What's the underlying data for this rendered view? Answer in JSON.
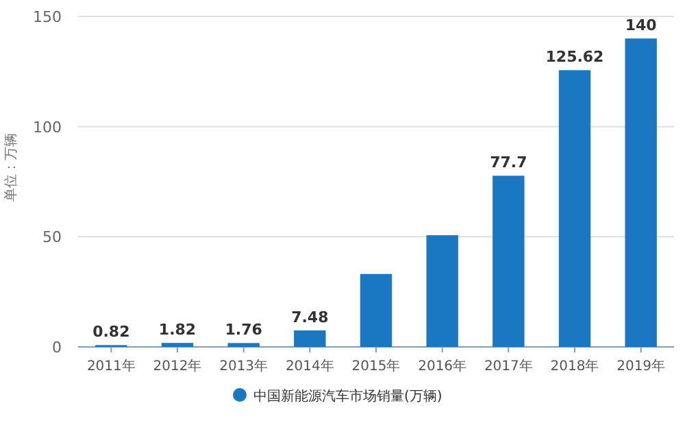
{
  "chart_data": {
    "type": "bar",
    "ylabel": "单位：万辆",
    "categories": [
      "2011年",
      "2012年",
      "2013年",
      "2014年",
      "2015年",
      "2016年",
      "2017年",
      "2018年",
      "2019年"
    ],
    "series": [
      {
        "name": "中国新能源汽车市场销量(万辆)",
        "color": "#1a78c2",
        "values": [
          0.82,
          1.82,
          1.76,
          7.48,
          33.11,
          50.7,
          77.7,
          125.62,
          140
        ]
      }
    ],
    "value_labels": [
      "0.82",
      "1.82",
      "1.76",
      "7.48",
      null,
      null,
      "77.7",
      "125.62",
      "140"
    ],
    "ylim": [
      0,
      150
    ],
    "yticks": [
      0,
      50,
      100,
      150
    ],
    "grid": "y",
    "legend": "bottom"
  }
}
